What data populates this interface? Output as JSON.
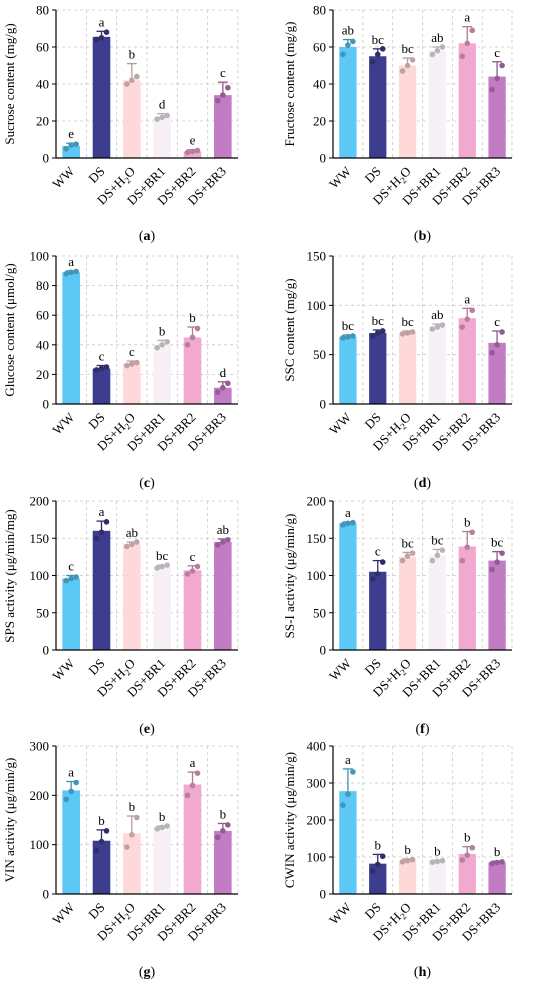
{
  "categories": [
    "WW",
    "DS",
    "DS+H2O",
    "DS+BR1",
    "DS+BR2",
    "DS+BR3"
  ],
  "colors": [
    "#5BC8F5",
    "#3D3D8F",
    "#FFD9D9",
    "#F7F0F7",
    "#F2A9CF",
    "#C27CC4"
  ],
  "chart_data": [
    {
      "type": "bar",
      "panel_label": "(a)",
      "ylabel": "Sucrose content (mg/g)",
      "ylim": [
        0,
        80
      ],
      "yticks": [
        0,
        20,
        40,
        60,
        80
      ],
      "categories": [
        "WW",
        "DS",
        "DS+H2O",
        "DS+BR1",
        "DS+BR2",
        "DS+BR3"
      ],
      "values": [
        6.5,
        65.5,
        42,
        22,
        3.5,
        34
      ],
      "errors": [
        1.5,
        3,
        9,
        2,
        1,
        7
      ],
      "letters": [
        "e",
        "a",
        "b",
        "d",
        "e",
        "c"
      ],
      "points": [
        [
          5,
          7,
          7.5
        ],
        [
          64,
          65,
          68
        ],
        [
          40,
          42,
          44
        ],
        [
          21,
          22,
          23
        ],
        [
          3,
          3.5,
          4
        ],
        [
          31,
          34,
          38
        ]
      ]
    },
    {
      "type": "bar",
      "panel_label": "(b)",
      "ylabel": "Fructose content (mg/g)",
      "ylim": [
        0,
        80
      ],
      "yticks": [
        0,
        20,
        40,
        60,
        80
      ],
      "categories": [
        "WW",
        "DS",
        "DS+H2O",
        "DS+BR1",
        "DS+BR2",
        "DS+BR3"
      ],
      "values": [
        60,
        55,
        50,
        58,
        62,
        44
      ],
      "errors": [
        4,
        4,
        4,
        2,
        9,
        8
      ],
      "letters": [
        "ab",
        "bc",
        "bc",
        "ab",
        "a",
        "c"
      ],
      "points": [
        [
          56,
          61,
          63
        ],
        [
          52,
          56,
          59
        ],
        [
          47,
          50,
          53
        ],
        [
          56,
          58,
          60
        ],
        [
          55,
          62,
          69
        ],
        [
          37,
          43,
          50
        ]
      ]
    },
    {
      "type": "bar",
      "panel_label": "(c)",
      "ylabel": "Glucose content  (μmol/g)",
      "ylim": [
        0,
        100
      ],
      "yticks": [
        0,
        20,
        40,
        60,
        80,
        100
      ],
      "categories": [
        "WW",
        "DS",
        "DS+H2O",
        "DS+BR1",
        "DS+BR2",
        "DS+BR3"
      ],
      "values": [
        89,
        24,
        27,
        40,
        45,
        11
      ],
      "errors": [
        1,
        2,
        2,
        3,
        7,
        4
      ],
      "letters": [
        "a",
        "c",
        "c",
        "b",
        "b",
        "d"
      ],
      "points": [
        [
          88,
          89,
          89.5
        ],
        [
          23,
          24,
          25
        ],
        [
          26,
          27,
          28
        ],
        [
          38,
          40,
          42
        ],
        [
          40,
          45,
          51
        ],
        [
          8,
          11,
          14
        ]
      ]
    },
    {
      "type": "bar",
      "panel_label": "(d)",
      "ylabel": "SSC content (mg/g)",
      "ylim": [
        0,
        150
      ],
      "yticks": [
        0,
        50,
        100,
        150
      ],
      "categories": [
        "WW",
        "DS",
        "DS+H2O",
        "DS+BR1",
        "DS+BR2",
        "DS+BR3"
      ],
      "values": [
        68,
        72,
        72,
        78,
        87,
        62
      ],
      "errors": [
        2,
        3,
        2,
        3,
        10,
        12
      ],
      "letters": [
        "bc",
        "bc",
        "bc",
        "ab",
        "a",
        "c"
      ],
      "points": [
        [
          67,
          68,
          69
        ],
        [
          69,
          72,
          74
        ],
        [
          71,
          72,
          73
        ],
        [
          76,
          78,
          80
        ],
        [
          78,
          86,
          95
        ],
        [
          52,
          60,
          73
        ]
      ]
    },
    {
      "type": "bar",
      "panel_label": "(e)",
      "ylabel": "SPS activity (μg/min/mg)",
      "ylim": [
        0,
        200
      ],
      "yticks": [
        0,
        50,
        100,
        150,
        200
      ],
      "categories": [
        "WW",
        "DS",
        "DS+H2O",
        "DS+BR1",
        "DS+BR2",
        "DS+BR3"
      ],
      "values": [
        96,
        160,
        142,
        112,
        107,
        145
      ],
      "errors": [
        4,
        13,
        3,
        2,
        6,
        4
      ],
      "letters": [
        "c",
        "a",
        "ab",
        "bc",
        "c",
        "ab"
      ],
      "points": [
        [
          93,
          96,
          98
        ],
        [
          150,
          158,
          172
        ],
        [
          139,
          142,
          145
        ],
        [
          110,
          112,
          114
        ],
        [
          102,
          106,
          112
        ],
        [
          141,
          145,
          148
        ]
      ]
    },
    {
      "type": "bar",
      "panel_label": "(f)",
      "ylabel": "SS-I activity (μg/min/g)",
      "ylim": [
        0,
        200
      ],
      "yticks": [
        0,
        50,
        100,
        150,
        200
      ],
      "categories": [
        "WW",
        "DS",
        "DS+H2O",
        "DS+BR1",
        "DS+BR2",
        "DS+BR3"
      ],
      "values": [
        170,
        105,
        125,
        127,
        139,
        120
      ],
      "errors": [
        2,
        15,
        6,
        8,
        20,
        12
      ],
      "letters": [
        "a",
        "c",
        "bc",
        "bc",
        "b",
        "bc"
      ],
      "points": [
        [
          168,
          170,
          171
        ],
        [
          95,
          102,
          118
        ],
        [
          120,
          126,
          130
        ],
        [
          120,
          127,
          134
        ],
        [
          120,
          138,
          158
        ],
        [
          108,
          118,
          130
        ]
      ]
    },
    {
      "type": "bar",
      "panel_label": "(g)",
      "ylabel": "VIN activity (μg/min/g)",
      "ylim": [
        0,
        300
      ],
      "yticks": [
        0,
        100,
        200,
        300
      ],
      "categories": [
        "WW",
        "DS",
        "DS+H2O",
        "DS+BR1",
        "DS+BR2",
        "DS+BR3"
      ],
      "values": [
        210,
        108,
        123,
        135,
        222,
        128
      ],
      "errors": [
        18,
        22,
        35,
        3,
        25,
        15
      ],
      "letters": [
        "a",
        "b",
        "b",
        "b",
        "a",
        "b"
      ],
      "points": [
        [
          192,
          208,
          226
        ],
        [
          88,
          106,
          128
        ],
        [
          95,
          120,
          155
        ],
        [
          132,
          135,
          138
        ],
        [
          200,
          220,
          245
        ],
        [
          115,
          128,
          140
        ]
      ]
    },
    {
      "type": "bar",
      "panel_label": "(h)",
      "ylabel": "CWIN activity (μg/min/g)",
      "ylim": [
        0,
        400
      ],
      "yticks": [
        0,
        100,
        200,
        300,
        400
      ],
      "categories": [
        "WW",
        "DS",
        "DS+H2O",
        "DS+BR1",
        "DS+BR2",
        "DS+BR3"
      ],
      "values": [
        278,
        82,
        90,
        88,
        108,
        85
      ],
      "errors": [
        60,
        25,
        5,
        3,
        20,
        4
      ],
      "letters": [
        "a",
        "b",
        "b",
        "b",
        "b",
        "b"
      ],
      "points": [
        [
          240,
          270,
          330
        ],
        [
          62,
          80,
          102
        ],
        [
          87,
          90,
          93
        ],
        [
          86,
          88,
          90
        ],
        [
          92,
          105,
          125
        ],
        [
          82,
          85,
          87
        ]
      ]
    }
  ]
}
